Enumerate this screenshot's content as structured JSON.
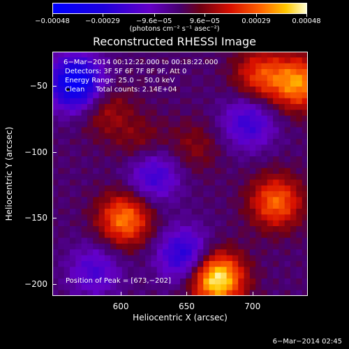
{
  "chart_data": {
    "type": "heatmap",
    "title": "Reconstructed RHESSI Image",
    "xlabel": "Heliocentric X (arcsec)",
    "ylabel": "Heliocentric Y (arcsec)",
    "xlim": [
      548,
      742
    ],
    "ylim": [
      -209,
      -24
    ],
    "x_ticks": [
      600,
      650,
      700
    ],
    "y_ticks": [
      -50,
      -100,
      -150,
      -200
    ],
    "x_tick_labels": [
      "600",
      "650",
      "700"
    ],
    "y_tick_labels": [
      "−50",
      "−100",
      "−150",
      "−200"
    ],
    "colorbar": {
      "range": [
        -0.00048,
        0.00048
      ],
      "ticks": [
        -0.00048,
        -0.00029,
        -9.6e-05,
        9.6e-05,
        0.00029,
        0.00048
      ],
      "tick_labels": [
        "−0.00048",
        "−0.00029",
        "−9.6e−05",
        "9.6e−05",
        "0.00029",
        "0.00048"
      ],
      "units": "(photons cm⁻² s⁻¹ asec⁻²)"
    },
    "annotations": [
      "6−Mar−2014 00:12:22.000 to 00:18:22.000",
      "Detectors: 3F 5F 6F 7F 8F 9F, Att 0",
      "Energy Range: 25.0 − 50.0 keV",
      "Clean     Total counts: 2.14E+04"
    ],
    "peak_label": "Position of Peak = [673,−202]",
    "peak": [
      673,
      -202
    ],
    "sources": [
      {
        "x": 673,
        "y": -196,
        "level": 0.00048
      },
      {
        "x": 603,
        "y": -151,
        "level": 0.00033
      },
      {
        "x": 718,
        "y": -138,
        "level": 0.0003
      },
      {
        "x": 735,
        "y": -48,
        "level": 0.00034
      },
      {
        "x": 706,
        "y": -42,
        "level": 0.00024
      },
      {
        "x": 588,
        "y": -68,
        "level": 0.00014
      },
      {
        "x": 615,
        "y": -92,
        "level": 0.0001
      },
      {
        "x": 656,
        "y": -96,
        "level": 0.0001
      },
      {
        "x": 566,
        "y": -48,
        "level": -0.00046
      },
      {
        "x": 697,
        "y": -78,
        "level": -0.00022
      },
      {
        "x": 648,
        "y": -178,
        "level": -0.00028
      },
      {
        "x": 625,
        "y": -118,
        "level": -0.00022
      },
      {
        "x": 580,
        "y": -190,
        "level": -0.00018
      }
    ],
    "grid": false
  },
  "footer_date": "6−Mar−2014 02:45"
}
